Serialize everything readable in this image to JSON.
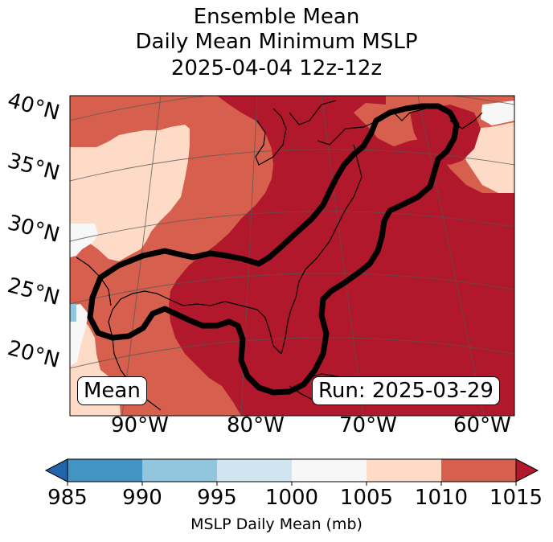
{
  "title": {
    "line1": "Ensemble Mean",
    "line2": "Daily Mean Minimum MSLP",
    "line3": "2025-04-04 12z-12z"
  },
  "map": {
    "lat_labels": [
      "40°N",
      "35°N",
      "30°N",
      "25°N",
      "20°N"
    ],
    "lon_labels": [
      "90°W",
      "80°W",
      "70°W",
      "60°W"
    ],
    "left_label": "Mean",
    "run_label": "Run: 2025-03-29",
    "colors": {
      "lt1000": "#f7f7f7",
      "b1005": "#fddbc7",
      "b1010": "#d6604d",
      "b1015": "#b2182b",
      "contour": "#000000"
    }
  },
  "colorbar": {
    "ticks": [
      "985",
      "990",
      "995",
      "1000",
      "1005",
      "1010",
      "1015"
    ],
    "label": "MSLP Daily Mean (mb)",
    "colors": [
      "#2166ac",
      "#4393c3",
      "#92c5de",
      "#d1e5f0",
      "#f7f7f7",
      "#fddbc7",
      "#d6604d",
      "#b2182b"
    ]
  }
}
